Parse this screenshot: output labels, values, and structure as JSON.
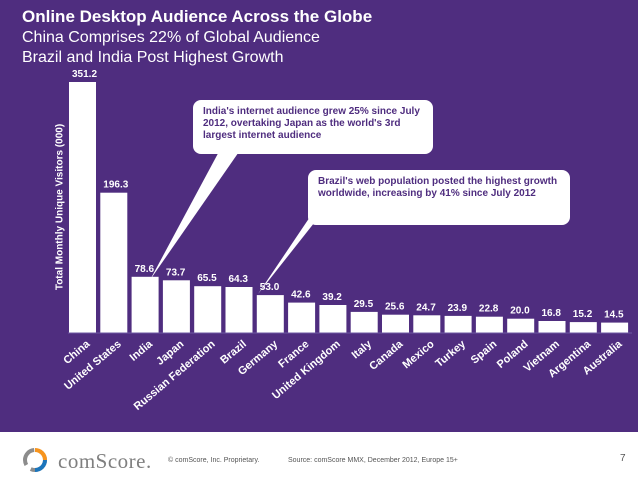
{
  "titles": {
    "main": "Online Desktop Audience Across the Globe",
    "line2": "China Comprises 22% of Global Audience",
    "line3": "Brazil and India Post Highest Growth"
  },
  "chart_data": {
    "type": "bar",
    "title": "Online Desktop Audience Across the Globe",
    "ylabel": "Total Monthly Unique Visitors (000)",
    "xlabel": "",
    "ylim": [
      0,
      351.2
    ],
    "grid": false,
    "categories": [
      "China",
      "United States",
      "India",
      "Japan",
      "Russian Federation",
      "Brazil",
      "Germany",
      "France",
      "United Kingdom",
      "Italy",
      "Canada",
      "Mexico",
      "Turkey",
      "Spain",
      "Poland",
      "Vietnam",
      "Argentina",
      "Australia"
    ],
    "values": [
      351.2,
      196.3,
      78.6,
      73.7,
      65.5,
      64.3,
      53.0,
      42.6,
      39.2,
      29.5,
      25.6,
      24.7,
      23.9,
      22.8,
      20.0,
      16.8,
      15.2,
      14.5
    ],
    "value_labels": [
      "351.2",
      "196.3",
      "78.6",
      "73.7",
      "65.5",
      "64.3",
      "53.0",
      "42.6",
      "39.2",
      "29.5",
      "25.6",
      "24.7",
      "23.9",
      "22.8",
      "20.0",
      "16.8",
      "15.2",
      "14.5"
    ]
  },
  "annotations": {
    "india": "India's internet audience grew 25% since July 2012, overtaking Japan as the world's 3rd largest internet audience",
    "brazil": "Brazil's web population posted the highest growth worldwide, increasing by 41% since July 2012"
  },
  "footer": {
    "brand": "comScore.",
    "copyright": "© comScore, Inc.    Proprietary.",
    "source": "Source: comScore MMX, December 2012, Europe 15+",
    "page": "7"
  },
  "colors": {
    "background": "#4f2d7f",
    "bar": "#ffffff",
    "text": "#ffffff",
    "logo_orange": "#f7941d",
    "logo_blue": "#1b75bc",
    "logo_gray": "#8c8c8c"
  }
}
